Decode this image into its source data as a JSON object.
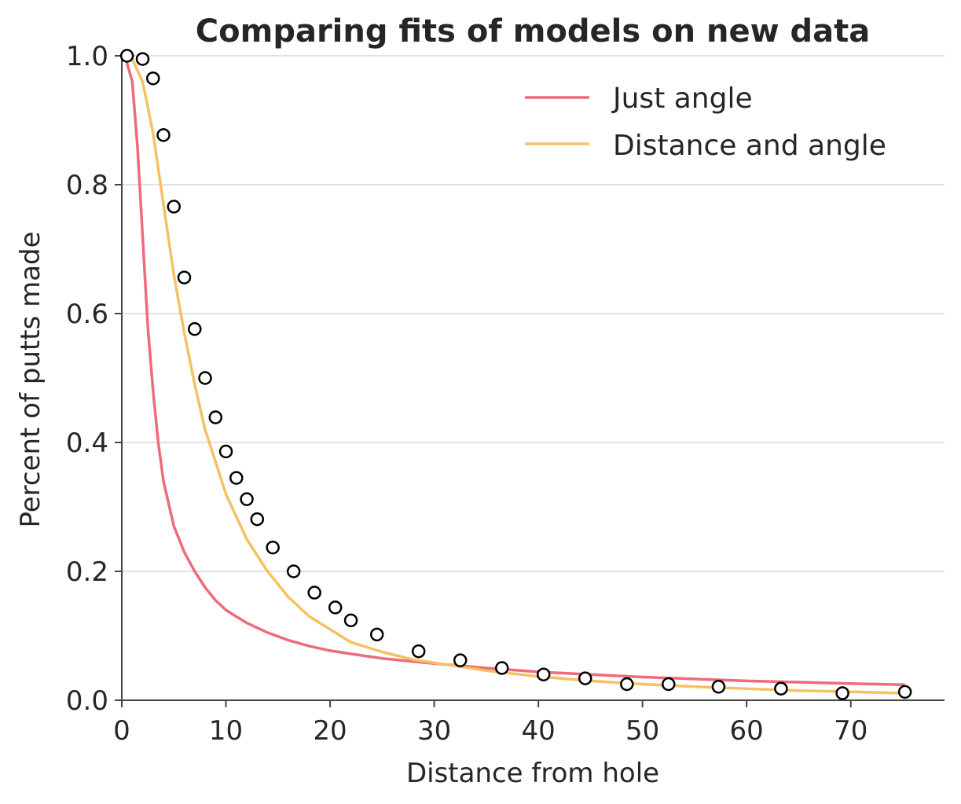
{
  "chart_data": {
    "type": "line",
    "title": "Comparing fits of models on new data",
    "xlabel": "Distance from hole",
    "ylabel": "Percent of putts made",
    "xlim": [
      0,
      79
    ],
    "ylim": [
      0,
      1.0
    ],
    "x_ticks": [
      0,
      10,
      20,
      30,
      40,
      50,
      60,
      70
    ],
    "x_tick_labels": [
      "0",
      "10",
      "20",
      "30",
      "40",
      "50",
      "60",
      "70"
    ],
    "y_ticks": [
      0,
      0.2,
      0.4,
      0.6,
      0.8,
      1.0
    ],
    "y_tick_labels": [
      "0.0",
      "0.2",
      "0.4",
      "0.6",
      "0.8",
      "1.0"
    ],
    "grid": "horizontal",
    "legend_position": "top-right",
    "colors": {
      "just_angle": "#ee6b7c",
      "distance_and_angle": "#f5c162",
      "points": "#000000",
      "grid": "#d9d9d9",
      "axis": "#444444"
    },
    "series": [
      {
        "name": "Just angle",
        "x": [
          0.3,
          1,
          1.5,
          2,
          2.5,
          3,
          3.5,
          4,
          5,
          6,
          7,
          8,
          9,
          10,
          12,
          14,
          16,
          18,
          20,
          22,
          25,
          28,
          30,
          35,
          40,
          45,
          50,
          55,
          60,
          65,
          70,
          75.2
        ],
        "y": [
          1.0,
          0.96,
          0.86,
          0.72,
          0.58,
          0.48,
          0.4,
          0.34,
          0.27,
          0.23,
          0.2,
          0.175,
          0.155,
          0.14,
          0.12,
          0.105,
          0.093,
          0.084,
          0.077,
          0.072,
          0.065,
          0.06,
          0.057,
          0.05,
          0.044,
          0.04,
          0.036,
          0.033,
          0.03,
          0.028,
          0.026,
          0.024
        ]
      },
      {
        "name": "Distance and angle",
        "x": [
          0.3,
          1,
          2,
          3,
          4,
          5,
          6,
          7,
          8,
          9,
          10,
          12,
          14,
          16,
          18,
          20,
          22,
          25,
          28,
          30,
          35,
          40,
          45,
          50,
          55,
          60,
          65,
          70,
          75.2
        ],
        "y": [
          1.0,
          0.995,
          0.96,
          0.88,
          0.77,
          0.66,
          0.57,
          0.49,
          0.42,
          0.37,
          0.32,
          0.25,
          0.2,
          0.16,
          0.13,
          0.11,
          0.09,
          0.075,
          0.063,
          0.058,
          0.046,
          0.037,
          0.03,
          0.025,
          0.021,
          0.018,
          0.015,
          0.013,
          0.011
        ]
      }
    ],
    "observed_points": {
      "x": [
        0.5,
        2,
        3,
        4,
        5,
        6,
        7,
        8,
        9,
        10,
        11,
        12,
        13,
        14.5,
        16.5,
        18.5,
        20.5,
        22,
        24.5,
        28.5,
        32.5,
        36.5,
        40.5,
        44.5,
        48.5,
        52.5,
        57.3,
        63.3,
        69.2,
        75.2
      ],
      "y": [
        1.0,
        0.995,
        0.965,
        0.877,
        0.766,
        0.656,
        0.576,
        0.5,
        0.439,
        0.386,
        0.345,
        0.312,
        0.281,
        0.237,
        0.2,
        0.167,
        0.144,
        0.124,
        0.102,
        0.076,
        0.062,
        0.05,
        0.04,
        0.034,
        0.025,
        0.025,
        0.021,
        0.018,
        0.011,
        0.013
      ]
    }
  }
}
